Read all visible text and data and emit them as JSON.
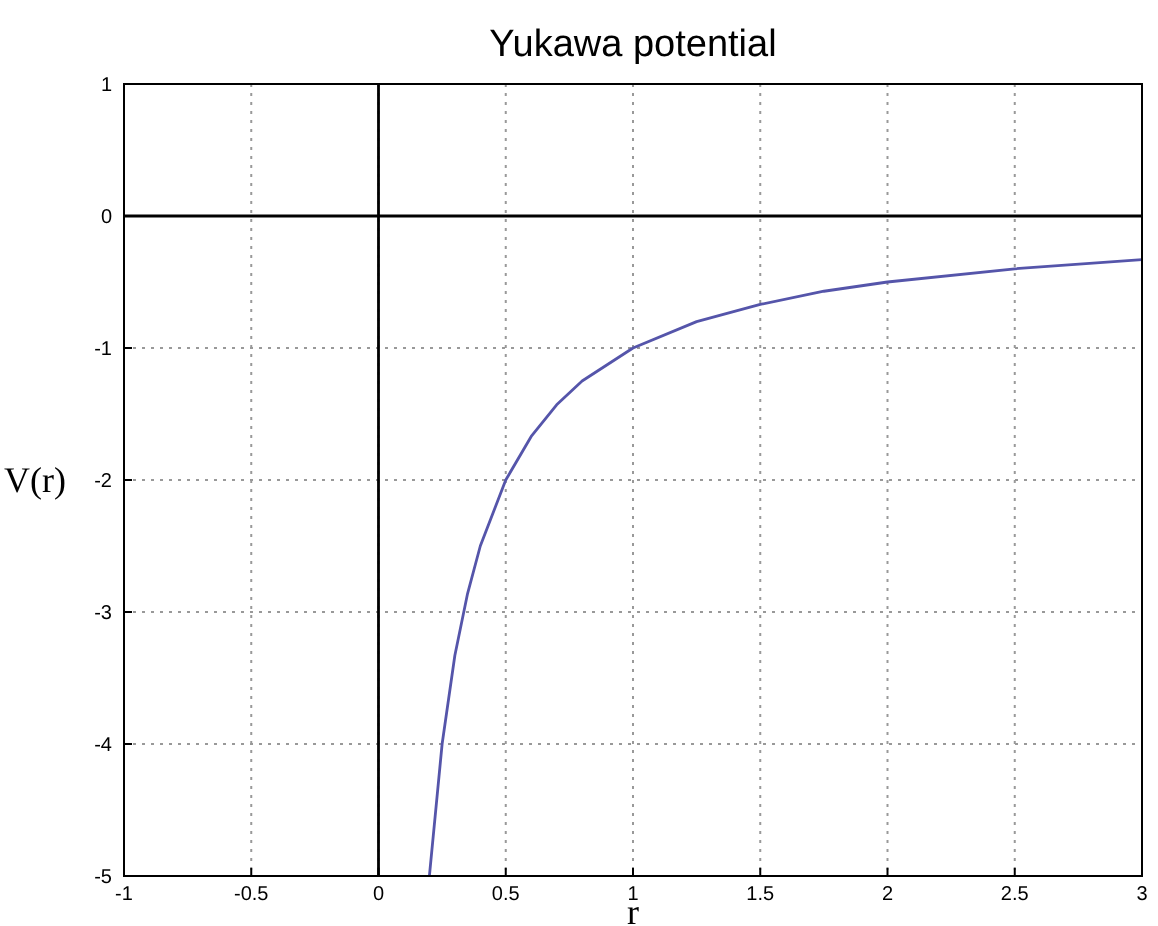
{
  "chart_data": {
    "type": "line",
    "title": "Yukawa potential",
    "xlabel": "r",
    "ylabel": "V(r)",
    "x": [
      0.2,
      0.25,
      0.3,
      0.35,
      0.4,
      0.5,
      0.6,
      0.7,
      0.8,
      1,
      1.25,
      1.5,
      1.75,
      2,
      2.5,
      3
    ],
    "series": [
      {
        "color": "#000000",
        "x": [
          -1,
          3
        ],
        "values": [
          0,
          0
        ]
      },
      {
        "color": "#000000",
        "x": [
          0,
          0
        ],
        "values": [
          -5,
          1
        ]
      },
      {
        "color": "#5555aa",
        "values": [
          -5,
          -4,
          -3.33,
          -2.86,
          -2.5,
          -2,
          -1.67,
          -1.43,
          -1.25,
          -1,
          -0.8,
          -0.67,
          -0.57,
          -0.5,
          -0.4,
          -0.33
        ]
      }
    ],
    "xlim": [
      -1,
      3
    ],
    "xticks": [
      -1,
      -0.5,
      0,
      0.5,
      1,
      1.5,
      2,
      2.5,
      3
    ],
    "ylim": [
      -5,
      1
    ],
    "yticks": [
      -5,
      -4,
      -3,
      -2,
      -1,
      0,
      1
    ],
    "grid": true,
    "marker": "none",
    "line_style": "solid"
  }
}
